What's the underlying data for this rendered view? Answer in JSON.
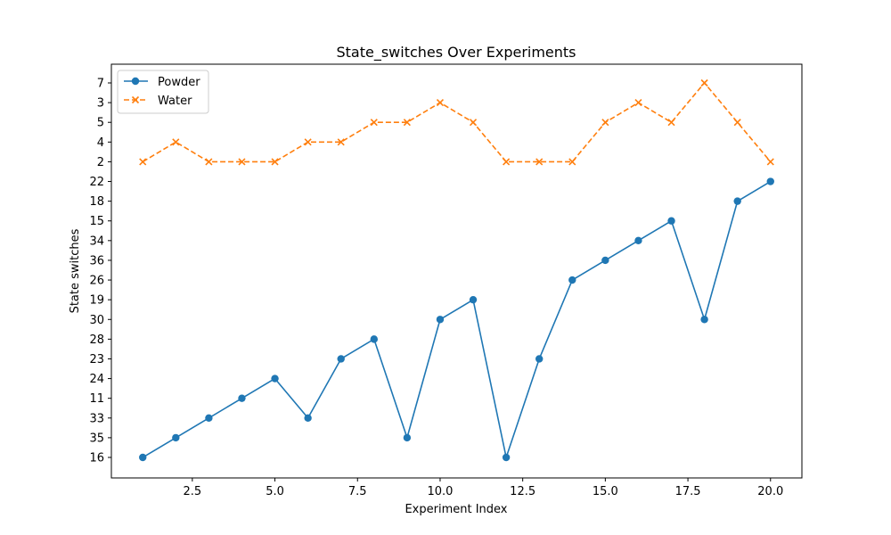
{
  "chart_data": {
    "type": "line",
    "title": "State_switches Over Experiments",
    "xlabel": "Experiment Index",
    "ylabel": "State switches",
    "xlim": [
      0.05,
      20.95
    ],
    "x_ticks": [
      2.5,
      5.0,
      7.5,
      10.0,
      12.5,
      15.0,
      17.5,
      20.0
    ],
    "x_tick_labels": [
      "2.5",
      "5.0",
      "7.5",
      "10.0",
      "12.5",
      "15.0",
      "17.5",
      "20.0"
    ],
    "y_categories": [
      "16",
      "35",
      "33",
      "11",
      "24",
      "23",
      "28",
      "30",
      "19",
      "26",
      "36",
      "34",
      "15",
      "18",
      "22",
      "2",
      "4",
      "5",
      "3",
      "7"
    ],
    "x": [
      1,
      2,
      3,
      4,
      5,
      6,
      7,
      8,
      9,
      10,
      11,
      12,
      13,
      14,
      15,
      16,
      17,
      18,
      19,
      20
    ],
    "series": [
      {
        "name": "Powder",
        "color": "#1f77b4",
        "line_style": "solid",
        "marker": "circle",
        "values": [
          "16",
          "35",
          "33",
          "11",
          "24",
          "33",
          "23",
          "28",
          "35",
          "30",
          "19",
          "16",
          "23",
          "26",
          "36",
          "34",
          "15",
          "30",
          "18",
          "22"
        ]
      },
      {
        "name": "Water",
        "color": "#ff7f0e",
        "line_style": "dashed",
        "marker": "x",
        "values": [
          "2",
          "4",
          "2",
          "2",
          "2",
          "4",
          "4",
          "5",
          "5",
          "3",
          "5",
          "2",
          "2",
          "2",
          "5",
          "3",
          "5",
          "7",
          "5",
          "2"
        ]
      }
    ],
    "legend_position": "top-left",
    "grid": false
  }
}
